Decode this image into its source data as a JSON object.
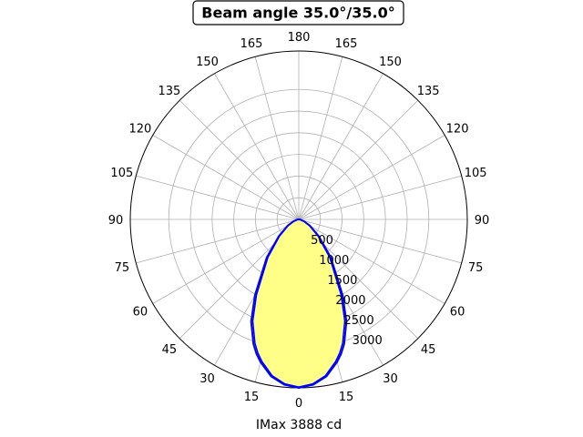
{
  "chart_data": {
    "type": "polar",
    "title": "Beam angle 35.0°/35.0°",
    "xlabel": "IMax 3888 cd",
    "angular_ticks_left": [
      "0",
      "15",
      "30",
      "45",
      "60",
      "75",
      "90",
      "105",
      "120",
      "135",
      "150",
      "165",
      "180"
    ],
    "angular_ticks_right": [
      "15",
      "30",
      "45",
      "60",
      "75",
      "90",
      "105",
      "120",
      "135",
      "150",
      "165"
    ],
    "angular_tick_values": [
      0,
      15,
      30,
      45,
      60,
      75,
      90,
      105,
      120,
      135,
      150,
      165,
      180
    ],
    "radial_ticks": [
      "500",
      "1000",
      "1500",
      "2000",
      "2500",
      "3000"
    ],
    "radial_tick_values": [
      500,
      1000,
      1500,
      2000,
      2500,
      3000
    ],
    "rlim": [
      0,
      3888
    ],
    "grid": true,
    "fill_color": "#ffff88",
    "line_color": "#0000ff",
    "series": [
      {
        "angle": [
          0,
          5,
          10,
          15,
          17.5,
          20,
          25,
          30,
          40,
          50,
          60,
          70,
          80,
          90
        ],
        "intensity": [
          3888,
          3830,
          3680,
          3410,
          3250,
          3060,
          2600,
          2020,
          1150,
          600,
          300,
          130,
          40,
          0
        ]
      }
    ]
  }
}
